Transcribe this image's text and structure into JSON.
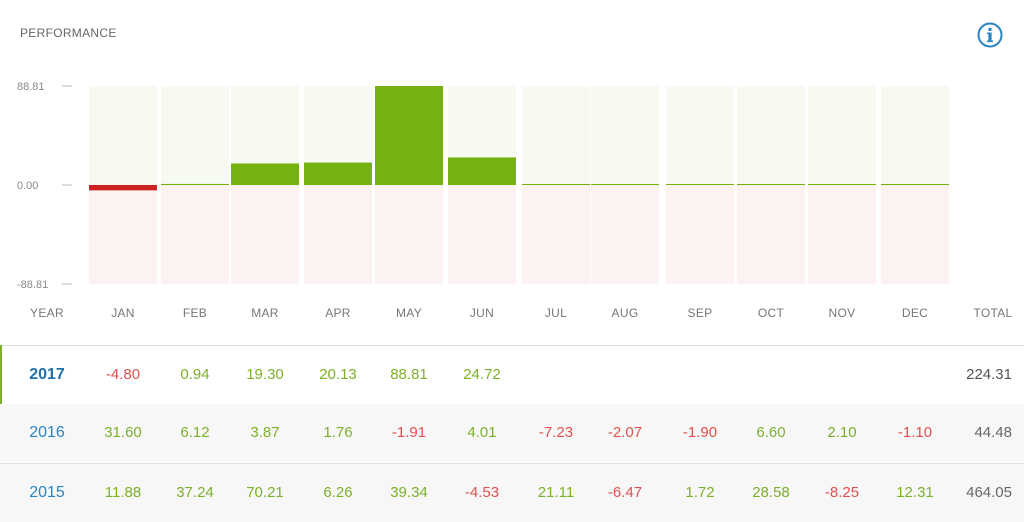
{
  "title": "PERFORMANCE",
  "icons": {
    "info": "info-circle-icon"
  },
  "colors": {
    "positive": "#7cb02a",
    "negative": "#e05050",
    "bar_positive": "#75b20f",
    "bar_negative": "#cc2222",
    "bg_positive": "#f6faf1",
    "bg_negative": "#fdf2f2",
    "year": "#2a84c2"
  },
  "table": {
    "headers": [
      "YEAR",
      "JAN",
      "FEB",
      "MAR",
      "APR",
      "MAY",
      "JUN",
      "JUL",
      "AUG",
      "SEP",
      "OCT",
      "NOV",
      "DEC",
      "TOTAL"
    ],
    "rows": [
      {
        "year": "2017",
        "values": [
          "-4.80",
          "0.94",
          "19.30",
          "20.13",
          "88.81",
          "24.72",
          "",
          "",
          "",
          "",
          "",
          ""
        ],
        "total": "224.31"
      },
      {
        "year": "2016",
        "values": [
          "31.60",
          "6.12",
          "3.87",
          "1.76",
          "-1.91",
          "4.01",
          "-7.23",
          "-2.07",
          "-1.90",
          "6.60",
          "2.10",
          "-1.10"
        ],
        "total": "44.48"
      },
      {
        "year": "2015",
        "values": [
          "11.88",
          "37.24",
          "70.21",
          "6.26",
          "39.34",
          "-4.53",
          "21.11",
          "-6.47",
          "1.72",
          "28.58",
          "-8.25",
          "12.31"
        ],
        "total": "464.05"
      }
    ]
  },
  "chart_data": {
    "type": "bar",
    "categories": [
      "JAN",
      "FEB",
      "MAR",
      "APR",
      "MAY",
      "JUN",
      "JUL",
      "AUG",
      "SEP",
      "OCT",
      "NOV",
      "DEC"
    ],
    "values": [
      -4.8,
      0.94,
      19.3,
      20.13,
      88.81,
      24.72,
      0,
      0,
      0,
      0,
      0,
      0
    ],
    "ylim": [
      -88.81,
      88.81
    ],
    "yticks": [
      "88.81",
      "0.00",
      "-88.81"
    ],
    "tick_values": [
      88.81,
      0,
      -88.81
    ],
    "title": "PERFORMANCE",
    "xlabel": "",
    "ylabel": ""
  }
}
